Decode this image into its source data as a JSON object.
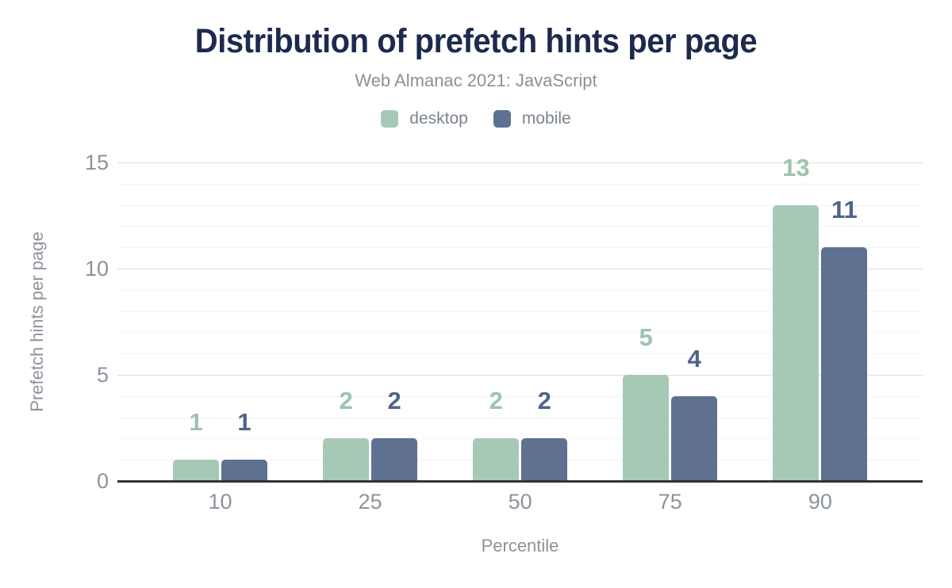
{
  "chart_data": {
    "type": "bar",
    "title": "Distribution of prefetch hints per page",
    "subtitle": "Web Almanac 2021: JavaScript",
    "categories": [
      "10",
      "25",
      "50",
      "75",
      "90"
    ],
    "series": [
      {
        "name": "desktop",
        "values": [
          1,
          2,
          2,
          5,
          13
        ],
        "color": "#a6c9b6",
        "label_color": "#9cc3ae"
      },
      {
        "name": "mobile",
        "values": [
          1,
          2,
          2,
          4,
          11
        ],
        "color": "#5f7190",
        "label_color": "#50648a"
      }
    ],
    "xlabel": "Percentile",
    "ylabel": "Prefetch hints per page",
    "ylim": [
      0,
      15
    ],
    "yticks": [
      0,
      5,
      10,
      15
    ],
    "grid": "horizontal, minor every 1 unit, major every 5 units",
    "legend_position": "top",
    "bar_value_labels": "shown above each bar in series color"
  },
  "colors": {
    "title_text": "#1b2a4d",
    "subtitle_text": "#8a9199",
    "legend_text": "#7d848e",
    "tick_text": "#8d939b",
    "axis_title_text": "#8d939b",
    "gridline_major": "#dcdee1",
    "gridline_minor": "#f2f3f4",
    "axis_line": "#333333",
    "background": "#ffffff"
  }
}
